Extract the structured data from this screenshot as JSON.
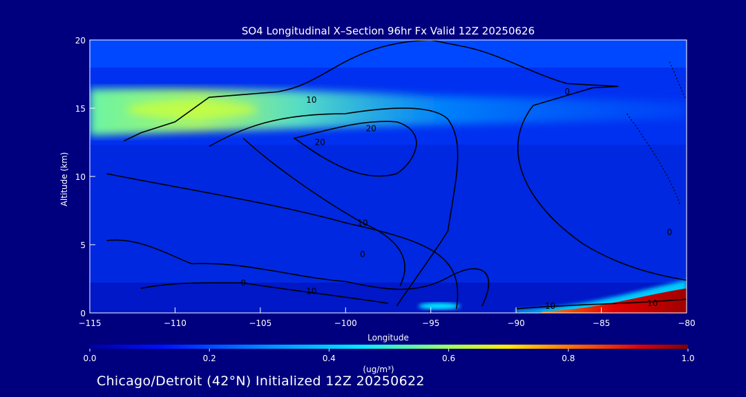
{
  "chart_data": {
    "type": "heatmap",
    "title": "SO4 Longitudinal X–Section 96hr  Fx Valid 12Z 20250626",
    "xlabel": "Longitude",
    "ylabel": "Altitude (km)",
    "xlim": [
      -115,
      -80
    ],
    "ylim": [
      0,
      20
    ],
    "x_ticks": [
      "−115",
      "−110",
      "−105",
      "−100",
      "−95",
      "−90",
      "−85",
      "−80"
    ],
    "x_tick_values": [
      -115,
      -110,
      -105,
      -100,
      -95,
      -90,
      -85,
      -80
    ],
    "y_ticks": [
      "0",
      "5",
      "10",
      "15",
      "20"
    ],
    "y_tick_values": [
      0,
      5,
      10,
      15,
      20
    ],
    "colorbar": {
      "label": "(ug/m³)",
      "range": [
        0.0,
        1.0
      ],
      "ticks": [
        "0.0",
        "0.2",
        "0.4",
        "0.6",
        "0.8",
        "1.0"
      ],
      "tick_values": [
        0.0,
        0.2,
        0.4,
        0.6,
        0.8,
        1.0
      ]
    },
    "features": [
      {
        "name": "upper-layer",
        "x_range": [
          -115,
          -80
        ],
        "altitude_km": 15,
        "peak_value": 0.6,
        "peak_longitude": -109
      },
      {
        "name": "surface-plume-east",
        "x_range": [
          -90,
          -80
        ],
        "altitude_km": 0.5,
        "peak_value": 1.0
      },
      {
        "name": "surface-spot",
        "x_range": [
          -96,
          -93
        ],
        "altitude_km": 0.5,
        "peak_value": 0.5
      }
    ],
    "contour_labels": [
      {
        "text": "10",
        "x": -102,
        "y": 15.6
      },
      {
        "text": "20",
        "x": -101.5,
        "y": 12.5
      },
      {
        "text": "20",
        "x": -98.5,
        "y": 13.5
      },
      {
        "text": "0",
        "x": -87,
        "y": 16.2
      },
      {
        "text": "10",
        "x": -99,
        "y": 6.6
      },
      {
        "text": "0",
        "x": -99,
        "y": 4.3
      },
      {
        "text": "0",
        "x": -106,
        "y": 2.2
      },
      {
        "text": "10",
        "x": -102,
        "y": 1.6
      },
      {
        "text": "10",
        "x": -88,
        "y": 0.5
      },
      {
        "text": "10",
        "x": -82,
        "y": 0.7
      },
      {
        "text": "0",
        "x": -81,
        "y": 5.9
      }
    ],
    "grid": false
  },
  "footer": "Chicago/Detroit (42°N) Initialized 12Z 20250622"
}
